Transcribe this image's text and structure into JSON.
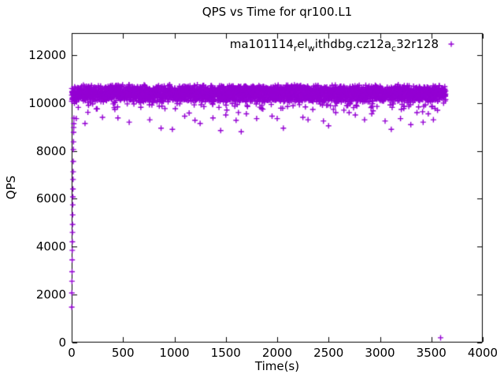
{
  "figure": {
    "background": "#ffffff",
    "border_color": "#000000",
    "text_color": "#000000"
  },
  "chart_data": {
    "type": "scatter",
    "title": "QPS vs Time for qr100.L1",
    "xlabel": "Time(s)",
    "ylabel": "QPS",
    "xlim": [
      0,
      4000
    ],
    "ylim": [
      0,
      12920
    ],
    "xticks": [
      0,
      500,
      1000,
      1500,
      2000,
      2500,
      3000,
      3500,
      4000
    ],
    "yticks": [
      0,
      2000,
      4000,
      6000,
      8000,
      10000,
      12000
    ],
    "grid": false,
    "tick_style": "inward-mirrored-all-borders",
    "legend": {
      "position": "top-right-inside",
      "marker": "plus",
      "color": "#9400D3",
      "label_plain": "ma101114_rel_withdbg.cz12a_c32r128",
      "segments": [
        {
          "t": "ma101114",
          "sub": false
        },
        {
          "t": "r",
          "sub": true
        },
        {
          "t": "el",
          "sub": false
        },
        {
          "t": "w",
          "sub": true
        },
        {
          "t": "ithdbg.cz12a",
          "sub": false
        },
        {
          "t": "c",
          "sub": true
        },
        {
          "t": "32r128",
          "sub": false
        }
      ]
    },
    "series": [
      {
        "name": "ma101114_rel_withdbg.cz12a_c32r128",
        "marker": "plus",
        "color": "#9400D3",
        "marker_size_px": 7,
        "steady_band": {
          "description": "dense steady-state band, one sample per second",
          "count": 3560,
          "x_min": 0,
          "x_max": 3640,
          "y_center": 10400,
          "y_spread": 380,
          "y_min_typical": 10020,
          "y_max_typical": 10780,
          "dip_fraction": 0.06,
          "dip_depth_max": 600,
          "seed": 987654321
        },
        "warmup_points": [
          [
            1,
            1480
          ],
          [
            2,
            2070
          ],
          [
            3,
            2560
          ],
          [
            4,
            2960
          ],
          [
            5,
            3450
          ],
          [
            6,
            3850
          ],
          [
            7,
            4210
          ],
          [
            8,
            4600
          ],
          [
            9,
            4930
          ],
          [
            10,
            5330
          ],
          [
            11,
            5750
          ],
          [
            12,
            6080
          ],
          [
            13,
            6410
          ],
          [
            14,
            6810
          ],
          [
            15,
            7130
          ],
          [
            16,
            7560
          ],
          [
            17,
            8060
          ],
          [
            18,
            8380
          ],
          [
            19,
            8780
          ],
          [
            20,
            8980
          ],
          [
            21,
            9140
          ],
          [
            22,
            9370
          ]
        ],
        "outlier_points": [
          [
            45,
            9350
          ],
          [
            130,
            9150
          ],
          [
            300,
            9400
          ],
          [
            450,
            9380
          ],
          [
            560,
            9200
          ],
          [
            760,
            9300
          ],
          [
            870,
            8950
          ],
          [
            980,
            8900
          ],
          [
            1100,
            9450
          ],
          [
            1200,
            9280
          ],
          [
            1250,
            9150
          ],
          [
            1375,
            9380
          ],
          [
            1450,
            8850
          ],
          [
            1500,
            9500
          ],
          [
            1600,
            9280
          ],
          [
            1650,
            8800
          ],
          [
            1700,
            9550
          ],
          [
            1800,
            9350
          ],
          [
            1950,
            9450
          ],
          [
            2000,
            9350
          ],
          [
            2060,
            8950
          ],
          [
            2250,
            9400
          ],
          [
            2300,
            9300
          ],
          [
            2450,
            9250
          ],
          [
            2500,
            9050
          ],
          [
            2570,
            9600
          ],
          [
            2700,
            9600
          ],
          [
            2760,
            9500
          ],
          [
            2850,
            9300
          ],
          [
            2920,
            9550
          ],
          [
            3050,
            9250
          ],
          [
            3110,
            8900
          ],
          [
            3200,
            9350
          ],
          [
            3300,
            9100
          ],
          [
            3360,
            9600
          ],
          [
            3420,
            9200
          ],
          [
            3470,
            9550
          ],
          [
            3520,
            9300
          ],
          [
            3560,
            9700
          ]
        ],
        "final_point": [
          3590,
          200
        ]
      }
    ]
  }
}
